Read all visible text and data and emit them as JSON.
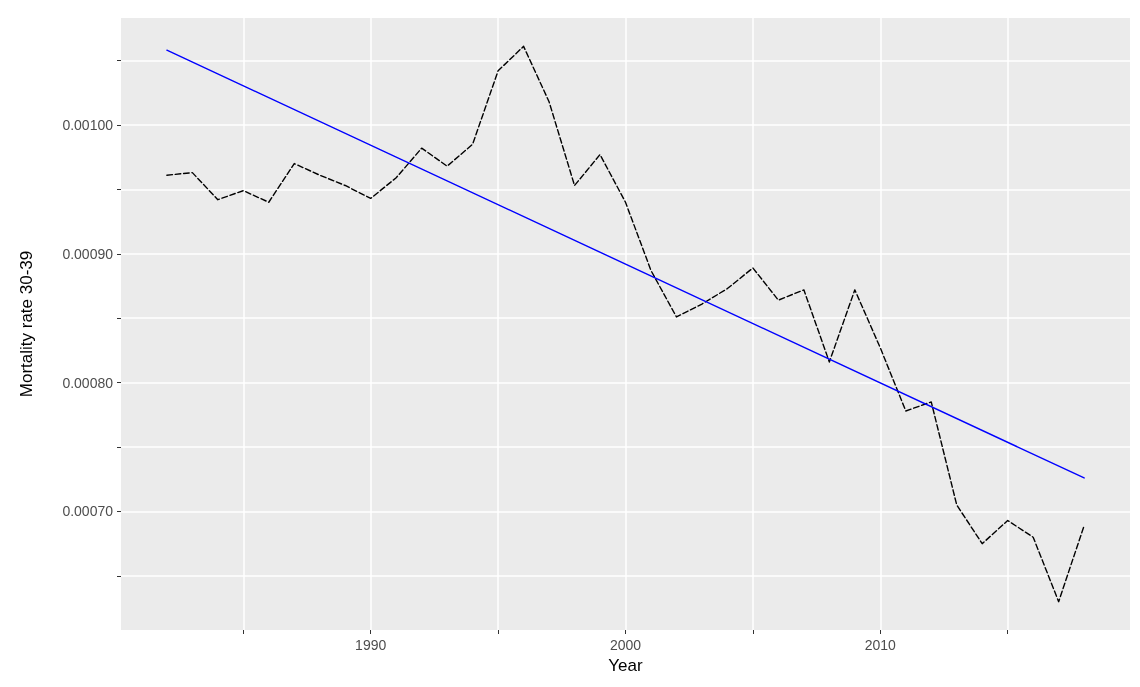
{
  "chart_data": {
    "type": "line",
    "xlabel": "Year",
    "ylabel": "Mortality rate 30-39",
    "xlim": [
      1980.2,
      2019.8
    ],
    "xticks": [
      {
        "value": 1985,
        "label": null
      },
      1990,
      {
        "value": 1995,
        "label": null
      },
      2000,
      {
        "value": 2005,
        "label": null
      },
      2010,
      {
        "value": 2015,
        "label": null
      }
    ],
    "ylim": [
      0.000608,
      0.001083
    ],
    "yticks": [
      {
        "value": 0.00065,
        "label": null
      },
      {
        "value": 0.0007,
        "label": "0.00070"
      },
      {
        "value": 0.00075,
        "label": null
      },
      {
        "value": 0.0008,
        "label": "0.00080"
      },
      {
        "value": 0.00085,
        "label": null
      },
      {
        "value": 0.0009,
        "label": "0.00090"
      },
      {
        "value": 0.00095,
        "label": null
      },
      {
        "value": 0.001,
        "label": "0.00100"
      },
      {
        "value": 0.00105,
        "label": null
      }
    ],
    "grid": true,
    "marker": "none",
    "series": [
      {
        "color": "#000000",
        "line_style": "dashed",
        "x": [
          1982,
          1983,
          1984,
          1985,
          1986,
          1987,
          1988,
          1989,
          1990,
          1991,
          1992,
          1993,
          1994,
          1995,
          1996,
          1997,
          1998,
          1999,
          2000,
          2001,
          2002,
          2003,
          2004,
          2005,
          2006,
          2007,
          2008,
          2009,
          2010,
          2011,
          2012,
          2013,
          2014,
          2015,
          2016,
          2017,
          2018
        ],
        "values": [
          0.000961,
          0.000963,
          0.000942,
          0.000949,
          0.00094,
          0.00097,
          0.000961,
          0.000953,
          0.000943,
          0.000959,
          0.000982,
          0.000968,
          0.000985,
          0.001042,
          0.001061,
          0.001018,
          0.000953,
          0.000977,
          0.00094,
          0.000887,
          0.000851,
          0.000861,
          0.000873,
          0.000889,
          0.000864,
          0.000872,
          0.000816,
          0.000872,
          0.000827,
          0.000778,
          0.000785,
          0.000705,
          0.000675,
          0.000693,
          0.00068,
          0.00063,
          0.000689
        ]
      },
      {
        "color": "#0000ff",
        "line_style": "solid",
        "x": [
          1982,
          2018
        ],
        "values": [
          0.001058,
          0.000726
        ]
      }
    ]
  }
}
